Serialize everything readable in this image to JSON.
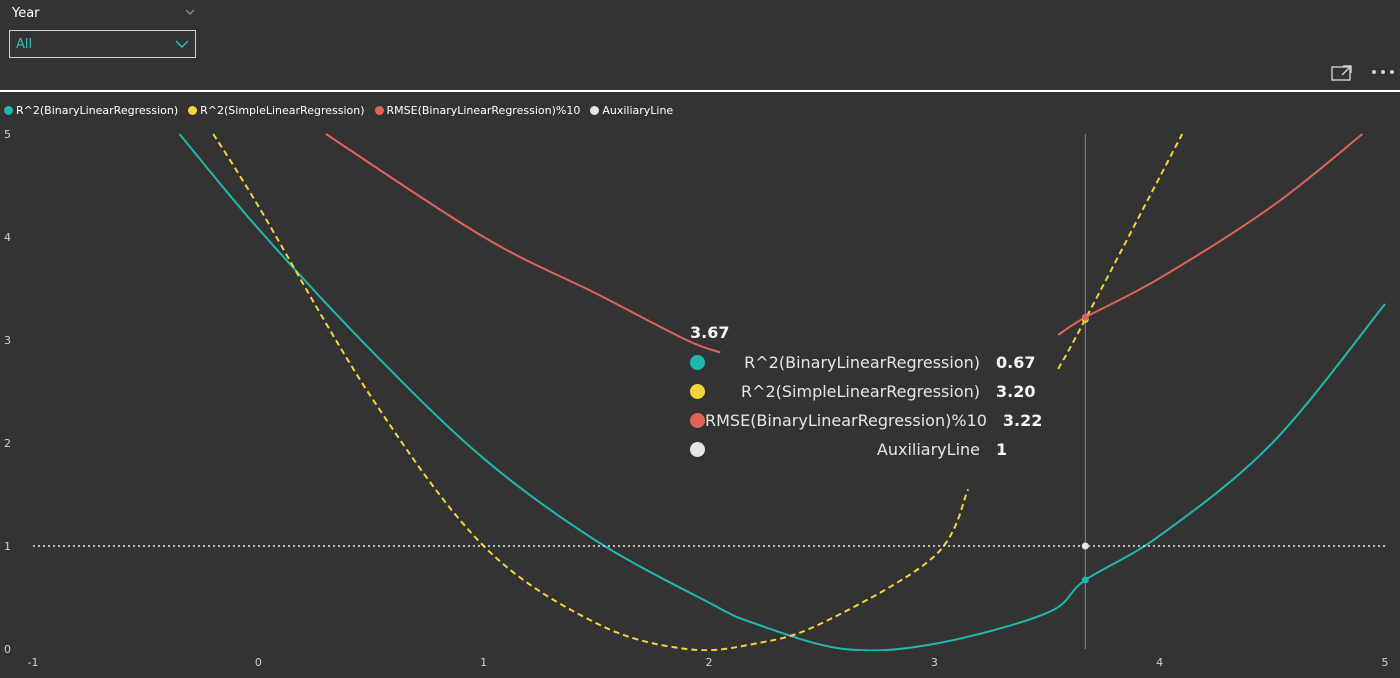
{
  "slicer": {
    "title": "Year",
    "value": "All"
  },
  "icons": {
    "slicer_chevron": "chevron-down-icon",
    "dropdown_chevron": "chevron-down-icon",
    "focus_mode": "focus-mode-icon",
    "more_options": "more-options-icon"
  },
  "legend": {
    "items": [
      {
        "label": "R^2(BinaryLinearRegression)",
        "color": "#1fb8ad"
      },
      {
        "label": "R^2(SimpleLinearRegression)",
        "color": "#f2d43b"
      },
      {
        "label": "RMSE(BinaryLinearRegression)%10",
        "color": "#e0635a"
      },
      {
        "label": "AuxiliaryLine",
        "color": "#e6e6e6"
      }
    ]
  },
  "tooltip": {
    "title": "3.67",
    "rows": [
      {
        "label": "R^2(BinaryLinearRegression)",
        "value": "0.67",
        "color": "#1fb8ad"
      },
      {
        "label": "R^2(SimpleLinearRegression)",
        "value": "3.20",
        "color": "#f2d43b"
      },
      {
        "label": "RMSE(BinaryLinearRegression)%10",
        "value": "3.22",
        "color": "#e0635a"
      },
      {
        "label": "AuxiliaryLine",
        "value": "1",
        "color": "#e6e6e6"
      }
    ]
  },
  "chart_data": {
    "type": "line",
    "xlim": [
      -1,
      5
    ],
    "ylim": [
      0,
      5
    ],
    "x_ticks": [
      "-1",
      "0",
      "1",
      "2",
      "3",
      "4",
      "5"
    ],
    "y_ticks": [
      "0",
      "1",
      "2",
      "3",
      "4",
      "5"
    ],
    "grid": false,
    "legend_position": "top-left",
    "hover_x": 3.67,
    "series": [
      {
        "name": "R^2(BinaryLinearRegression)",
        "color": "#1fb8ad",
        "style": "solid",
        "points": [
          [
            -0.35,
            5.0
          ],
          [
            0,
            4.08
          ],
          [
            0.5,
            2.9
          ],
          [
            1,
            1.85
          ],
          [
            1.5,
            1.05
          ],
          [
            2,
            0.45
          ],
          [
            2.2,
            0.25
          ],
          [
            2.6,
            0.0
          ],
          [
            3,
            0.05
          ],
          [
            3.5,
            0.35
          ],
          [
            3.67,
            0.67
          ],
          [
            4,
            1.1
          ],
          [
            4.5,
            2.0
          ],
          [
            5,
            3.35
          ]
        ]
      },
      {
        "name": "R^2(SimpleLinearRegression)",
        "color": "#f2d43b",
        "style": "dashed",
        "points": [
          [
            -0.2,
            5.0
          ],
          [
            0,
            4.3
          ],
          [
            0.5,
            2.45
          ],
          [
            1,
            1.0
          ],
          [
            1.5,
            0.25
          ],
          [
            1.9,
            0.0
          ],
          [
            2.2,
            0.05
          ],
          [
            2.5,
            0.25
          ],
          [
            3,
            0.9
          ],
          [
            3.15,
            1.55
          ]
        ]
      },
      {
        "name": "R^2(SimpleLinearRegression)",
        "color": "#f2d43b",
        "style": "dashed",
        "points": [
          [
            3.55,
            2.72
          ],
          [
            3.67,
            3.2
          ],
          [
            4.1,
            5.0
          ]
        ]
      },
      {
        "name": "RMSE(BinaryLinearRegression)%10",
        "color": "#e0635a",
        "style": "solid",
        "points": [
          [
            0.3,
            5.0
          ],
          [
            1,
            4.0
          ],
          [
            1.5,
            3.45
          ],
          [
            1.9,
            3.0
          ],
          [
            2.05,
            2.88
          ]
        ]
      },
      {
        "name": "RMSE(BinaryLinearRegression)%10",
        "color": "#e0635a",
        "style": "solid",
        "points": [
          [
            3.55,
            3.05
          ],
          [
            3.67,
            3.22
          ],
          [
            4,
            3.6
          ],
          [
            4.5,
            4.3
          ],
          [
            4.9,
            5.0
          ]
        ]
      },
      {
        "name": "AuxiliaryLine",
        "color": "#e6e6e6",
        "style": "dotted",
        "points": [
          [
            -1,
            1
          ],
          [
            5,
            1
          ]
        ]
      }
    ]
  }
}
